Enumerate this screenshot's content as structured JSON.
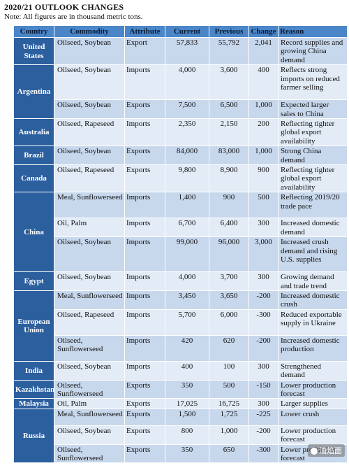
{
  "title": "2020/21 OUTLOOK CHANGES",
  "note": "Note: All figures are in thousand metric tons.",
  "headers": [
    "Country",
    "Commodity",
    "Attribute",
    "Current",
    "Previous",
    "Change",
    "Reason"
  ],
  "groups": [
    {
      "country": "United States",
      "rows": [
        {
          "commodity": "Oilseed, Soybean",
          "attribute": "Export",
          "current": "57,833",
          "previous": "55,792",
          "change": "2,041",
          "reason": "Record supplies and growing China demand",
          "h": 36
        }
      ]
    },
    {
      "country": "Argentina",
      "rows": [
        {
          "commodity": "Oilseed, Soybean",
          "attribute": "Imports",
          "current": "4,000",
          "previous": "3,600",
          "change": "400",
          "reason": "Reflects strong imports on reduced farmer selling",
          "h": 50
        },
        {
          "commodity": "Oilseed, Soybean",
          "attribute": "Exports",
          "current": "7,500",
          "previous": "6,500",
          "change": "1,000",
          "reason": "Expected larger sales to China",
          "h": 24
        }
      ]
    },
    {
      "country": "Australia",
      "rows": [
        {
          "commodity": "Oilseed, Rapeseed",
          "attribute": "Imports",
          "current": "2,350",
          "previous": "2,150",
          "change": "200",
          "reason": "Reflecting tighter global export availability",
          "h": 37
        }
      ]
    },
    {
      "country": "Brazil",
      "rows": [
        {
          "commodity": "Oilseed, Soybean",
          "attribute": "Exports",
          "current": "84,000",
          "previous": "83,000",
          "change": "1,000",
          "reason": "Strong China demand",
          "h": 24
        }
      ]
    },
    {
      "country": "Canada",
      "rows": [
        {
          "commodity": "Oilseed, Rapeseed",
          "attribute": "Exports",
          "current": "9,800",
          "previous": "8,900",
          "change": "900",
          "reason": "Reflecting tighter global export availability",
          "h": 37
        }
      ]
    },
    {
      "country": "China",
      "rows": [
        {
          "commodity": "Meal, Sunflowerseed",
          "attribute": "Imports",
          "current": "1,400",
          "previous": "900",
          "change": "500",
          "reason": "Reflecting 2019/20 trade pace",
          "h": 37
        },
        {
          "commodity": "Oil, Palm",
          "attribute": "Imports",
          "current": "6,700",
          "previous": "6,400",
          "change": "300",
          "reason": "Increased domestic demand",
          "h": 24
        },
        {
          "commodity": "Oilseed, Soybean",
          "attribute": "Imports",
          "current": "99,000",
          "previous": "96,000",
          "change": "3,000",
          "reason": "Increased crush demand and rising U.S. supplies",
          "h": 50
        }
      ]
    },
    {
      "country": "Egypt",
      "rows": [
        {
          "commodity": "Oilseed, Soybean",
          "attribute": "Imports",
          "current": "4,000",
          "previous": "3,700",
          "change": "300",
          "reason": "Growing demand and trade trend",
          "h": 24
        }
      ]
    },
    {
      "country": "European Union",
      "rows": [
        {
          "commodity": "Meal, Sunflowerseed",
          "attribute": "Imports",
          "current": "3,450",
          "previous": "3,650",
          "change": "-200",
          "reason": "Increased domestic crush",
          "h": 24
        },
        {
          "commodity": "Oilseed, Rapeseed",
          "attribute": "Imports",
          "current": "5,700",
          "previous": "6,000",
          "change": "-300",
          "reason": "Reduced exportable supply in Ukraine",
          "h": 37
        },
        {
          "commodity": "Oilseed, Sunflowerseed",
          "attribute": "Imports",
          "current": "420",
          "previous": "620",
          "change": "-200",
          "reason": "Increased domestic production",
          "h": 37
        }
      ]
    },
    {
      "country": "India",
      "rows": [
        {
          "commodity": "Oilseed, Soybean",
          "attribute": "Imports",
          "current": "400",
          "previous": "100",
          "change": "300",
          "reason": "Strengthened demand",
          "h": 24
        }
      ]
    },
    {
      "country": "Kazakhstan",
      "rows": [
        {
          "commodity": "Oilseed, Sunflowerseed",
          "attribute": "Exports",
          "current": "350",
          "previous": "500",
          "change": "-150",
          "reason": "Lower production forecast",
          "h": 25
        }
      ]
    },
    {
      "country": "Malaysia",
      "rows": [
        {
          "commodity": "Oil, Palm",
          "attribute": "Exports",
          "current": "17,025",
          "previous": "16,725",
          "change": "300",
          "reason": "Larger supplies",
          "h": 13
        }
      ]
    },
    {
      "country": "Russia",
      "rows": [
        {
          "commodity": "Meal, Sunflowerseed",
          "attribute": "Exports",
          "current": "1,500",
          "previous": "1,725",
          "change": "-225",
          "reason": "Lower crush",
          "h": 24
        },
        {
          "commodity": "Oilseed, Soybean",
          "attribute": "Exports",
          "current": "800",
          "previous": "1,000",
          "change": "-200",
          "reason": "Lower production forecast",
          "h": 24
        },
        {
          "commodity": "Oilseed, Sunflowerseed",
          "attribute": "Exports",
          "current": "350",
          "previous": "650",
          "change": "-300",
          "reason": "Lower production forecast",
          "h": 25
        }
      ]
    }
  ],
  "watermark": "油焰面"
}
